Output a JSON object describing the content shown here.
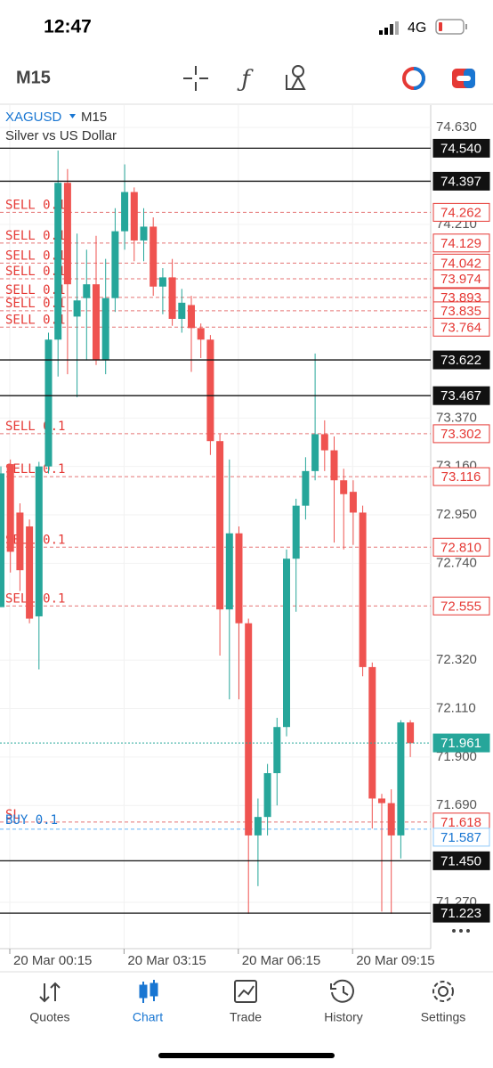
{
  "status_bar": {
    "time": "12:47",
    "network": "4G"
  },
  "toolbar": {
    "timeframe": "M15"
  },
  "chart_data": {
    "type": "candlestick",
    "symbol": "XAGUSD",
    "timeframe": "M15",
    "description": "Silver vs US Dollar",
    "ylim": [
      71.069,
      74.727
    ],
    "yticks": [
      {
        "value": 74.63,
        "label": "74.630"
      },
      {
        "value": 74.21,
        "label": "74.210"
      },
      {
        "value": 73.37,
        "label": "73.370"
      },
      {
        "value": 73.16,
        "label": "73.160"
      },
      {
        "value": 72.95,
        "label": "72.950"
      },
      {
        "value": 72.74,
        "label": "72.740"
      },
      {
        "value": 72.32,
        "label": "72.320"
      },
      {
        "value": 72.11,
        "label": "72.110"
      },
      {
        "value": 71.9,
        "label": "71.900"
      },
      {
        "value": 71.69,
        "label": "71.690"
      },
      {
        "value": 71.27,
        "label": "71.270"
      }
    ],
    "x_labels": [
      "20 Mar 00:15",
      "20 Mar 03:15",
      "20 Mar 06:15",
      "20 Mar 09:15"
    ],
    "levels": [
      {
        "value": 74.54,
        "label": "74.540"
      },
      {
        "value": 74.397,
        "label": "74.397"
      },
      {
        "value": 73.622,
        "label": "73.622"
      },
      {
        "value": 73.467,
        "label": "73.467"
      },
      {
        "value": 71.45,
        "label": "71.450"
      },
      {
        "value": 71.223,
        "label": "71.223"
      }
    ],
    "orders": [
      {
        "value": 74.262,
        "label": "74.262",
        "text": "SELL 0.1"
      },
      {
        "value": 74.129,
        "label": "74.129",
        "text": "SELL 0.1"
      },
      {
        "value": 74.042,
        "label": "74.042",
        "text": "SELL 0.1"
      },
      {
        "value": 73.974,
        "label": "73.974",
        "text": "SELL 0.1"
      },
      {
        "value": 73.893,
        "label": "73.893",
        "text": "SELL 0.1"
      },
      {
        "value": 73.835,
        "label": "73.835",
        "text": "SELL 0.1"
      },
      {
        "value": 73.764,
        "label": "73.764",
        "text": "SELL 0.1"
      },
      {
        "value": 73.302,
        "label": "73.302",
        "text": "SELL 0.1"
      },
      {
        "value": 73.116,
        "label": "73.116",
        "text": "SELL 0.1"
      },
      {
        "value": 72.81,
        "label": "72.810",
        "text": "SELL 0.1"
      },
      {
        "value": 72.555,
        "label": "72.555",
        "text": "SELL 0.1"
      },
      {
        "value": 71.618,
        "label": "71.618",
        "text": "SL"
      }
    ],
    "buy_order": {
      "value": 71.587,
      "label": "71.587",
      "text": "BUY 0.1"
    },
    "current_price": {
      "value": 71.961,
      "label": "71.961"
    },
    "candles": [
      {
        "o": 72.55,
        "h": 73.16,
        "l": 72.55,
        "c": 73.13
      },
      {
        "o": 73.17,
        "h": 73.19,
        "l": 72.7,
        "c": 72.79
      },
      {
        "o": 72.96,
        "h": 73.0,
        "l": 72.62,
        "c": 72.71
      },
      {
        "o": 72.9,
        "h": 72.93,
        "l": 72.48,
        "c": 72.5
      },
      {
        "o": 72.51,
        "h": 73.18,
        "l": 72.28,
        "c": 73.16
      },
      {
        "o": 73.16,
        "h": 73.74,
        "l": 73.13,
        "c": 73.71
      },
      {
        "o": 73.71,
        "h": 74.53,
        "l": 73.55,
        "c": 74.39
      },
      {
        "o": 74.39,
        "h": 74.45,
        "l": 73.56,
        "c": 73.95
      },
      {
        "o": 73.81,
        "h": 74.17,
        "l": 73.46,
        "c": 73.88
      },
      {
        "o": 73.89,
        "h": 74.1,
        "l": 73.62,
        "c": 73.95
      },
      {
        "o": 73.95,
        "h": 74.16,
        "l": 73.6,
        "c": 73.62
      },
      {
        "o": 73.62,
        "h": 74.06,
        "l": 73.56,
        "c": 73.89
      },
      {
        "o": 73.89,
        "h": 74.28,
        "l": 73.83,
        "c": 74.18
      },
      {
        "o": 74.18,
        "h": 74.47,
        "l": 74.1,
        "c": 74.35
      },
      {
        "o": 74.35,
        "h": 74.37,
        "l": 74.05,
        "c": 74.14
      },
      {
        "o": 74.14,
        "h": 74.28,
        "l": 74.05,
        "c": 74.2
      },
      {
        "o": 74.2,
        "h": 74.24,
        "l": 73.9,
        "c": 73.94
      },
      {
        "o": 73.94,
        "h": 74.02,
        "l": 73.82,
        "c": 73.98
      },
      {
        "o": 73.98,
        "h": 74.06,
        "l": 73.77,
        "c": 73.8
      },
      {
        "o": 73.8,
        "h": 73.93,
        "l": 73.74,
        "c": 73.87
      },
      {
        "o": 73.86,
        "h": 73.9,
        "l": 73.57,
        "c": 73.76
      },
      {
        "o": 73.76,
        "h": 73.78,
        "l": 73.63,
        "c": 73.71
      },
      {
        "o": 73.71,
        "h": 73.73,
        "l": 73.21,
        "c": 73.27
      },
      {
        "o": 73.27,
        "h": 73.3,
        "l": 72.34,
        "c": 72.54
      },
      {
        "o": 72.54,
        "h": 73.19,
        "l": 72.15,
        "c": 72.87
      },
      {
        "o": 72.87,
        "h": 72.9,
        "l": 72.15,
        "c": 72.48
      },
      {
        "o": 72.48,
        "h": 72.5,
        "l": 71.22,
        "c": 71.56
      },
      {
        "o": 71.56,
        "h": 71.72,
        "l": 71.34,
        "c": 71.64
      },
      {
        "o": 71.64,
        "h": 71.87,
        "l": 71.56,
        "c": 71.83
      },
      {
        "o": 71.83,
        "h": 72.07,
        "l": 71.69,
        "c": 72.03
      },
      {
        "o": 72.03,
        "h": 72.8,
        "l": 71.99,
        "c": 72.76
      },
      {
        "o": 72.76,
        "h": 73.02,
        "l": 72.53,
        "c": 72.99
      },
      {
        "o": 72.99,
        "h": 73.2,
        "l": 72.93,
        "c": 73.14
      },
      {
        "o": 73.14,
        "h": 73.65,
        "l": 73.1,
        "c": 73.3
      },
      {
        "o": 73.3,
        "h": 73.36,
        "l": 73.14,
        "c": 73.23
      },
      {
        "o": 73.23,
        "h": 73.29,
        "l": 72.83,
        "c": 73.1
      },
      {
        "o": 73.1,
        "h": 73.15,
        "l": 72.8,
        "c": 73.04
      },
      {
        "o": 73.05,
        "h": 73.1,
        "l": 72.82,
        "c": 72.96
      },
      {
        "o": 72.96,
        "h": 72.99,
        "l": 72.25,
        "c": 72.29
      },
      {
        "o": 72.29,
        "h": 72.31,
        "l": 71.59,
        "c": 71.72
      },
      {
        "o": 71.72,
        "h": 71.74,
        "l": 71.23,
        "c": 71.7
      },
      {
        "o": 71.7,
        "h": 71.76,
        "l": 71.22,
        "c": 71.56
      },
      {
        "o": 71.56,
        "h": 72.06,
        "l": 71.46,
        "c": 72.05
      },
      {
        "o": 72.05,
        "h": 72.06,
        "l": 71.9,
        "c": 71.96
      }
    ]
  },
  "nav": [
    {
      "label": "Quotes"
    },
    {
      "label": "Chart"
    },
    {
      "label": "Trade"
    },
    {
      "label": "History"
    },
    {
      "label": "Settings"
    }
  ]
}
